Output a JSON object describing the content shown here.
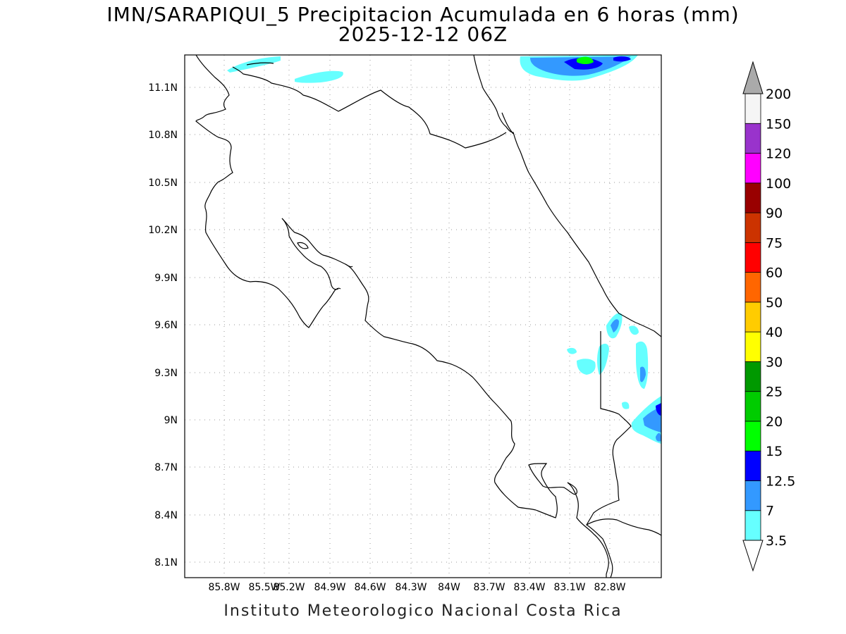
{
  "header": {
    "title_line1": "IMN/SARAPIQUI_5 Precipitacion Acumulada en 6 horas (mm)",
    "title_line2": "2025-12-12 06Z"
  },
  "footer": {
    "credit": "Instituto Meteorologico Nacional Costa Rica"
  },
  "map": {
    "lon_range": [
      -86.0,
      -82.4
    ],
    "lat_range": [
      8.0,
      11.3
    ],
    "lon_ticks": [
      "85.8W",
      "85.5W",
      "85.2W",
      "84.9W",
      "84.6W",
      "84.3W",
      "84W",
      "83.7W",
      "83.4W",
      "83.1W",
      "82.8W"
    ],
    "lat_ticks": [
      "11.1N",
      "10.8N",
      "10.5N",
      "10.2N",
      "9.9N",
      "9.6N",
      "9.3N",
      "9N",
      "8.7N",
      "8.4N",
      "8.1N"
    ],
    "grid": "dotted"
  },
  "colorbar": {
    "levels": [
      "3.5",
      "7",
      "12.5",
      "15",
      "20",
      "25",
      "30",
      "40",
      "50",
      "60",
      "75",
      "90",
      "100",
      "120",
      "150",
      "200"
    ],
    "colors": [
      "#66ffff",
      "#3399ff",
      "#0000ff",
      "#00ff00",
      "#00cc00",
      "#009900",
      "#ffff00",
      "#ffcc00",
      "#ff6600",
      "#ff0000",
      "#cc3300",
      "#990000",
      "#ff00ff",
      "#9933cc",
      "#f5f5f5"
    ],
    "over_color": "#aaaaaa",
    "under_color": "#ffffff"
  }
}
